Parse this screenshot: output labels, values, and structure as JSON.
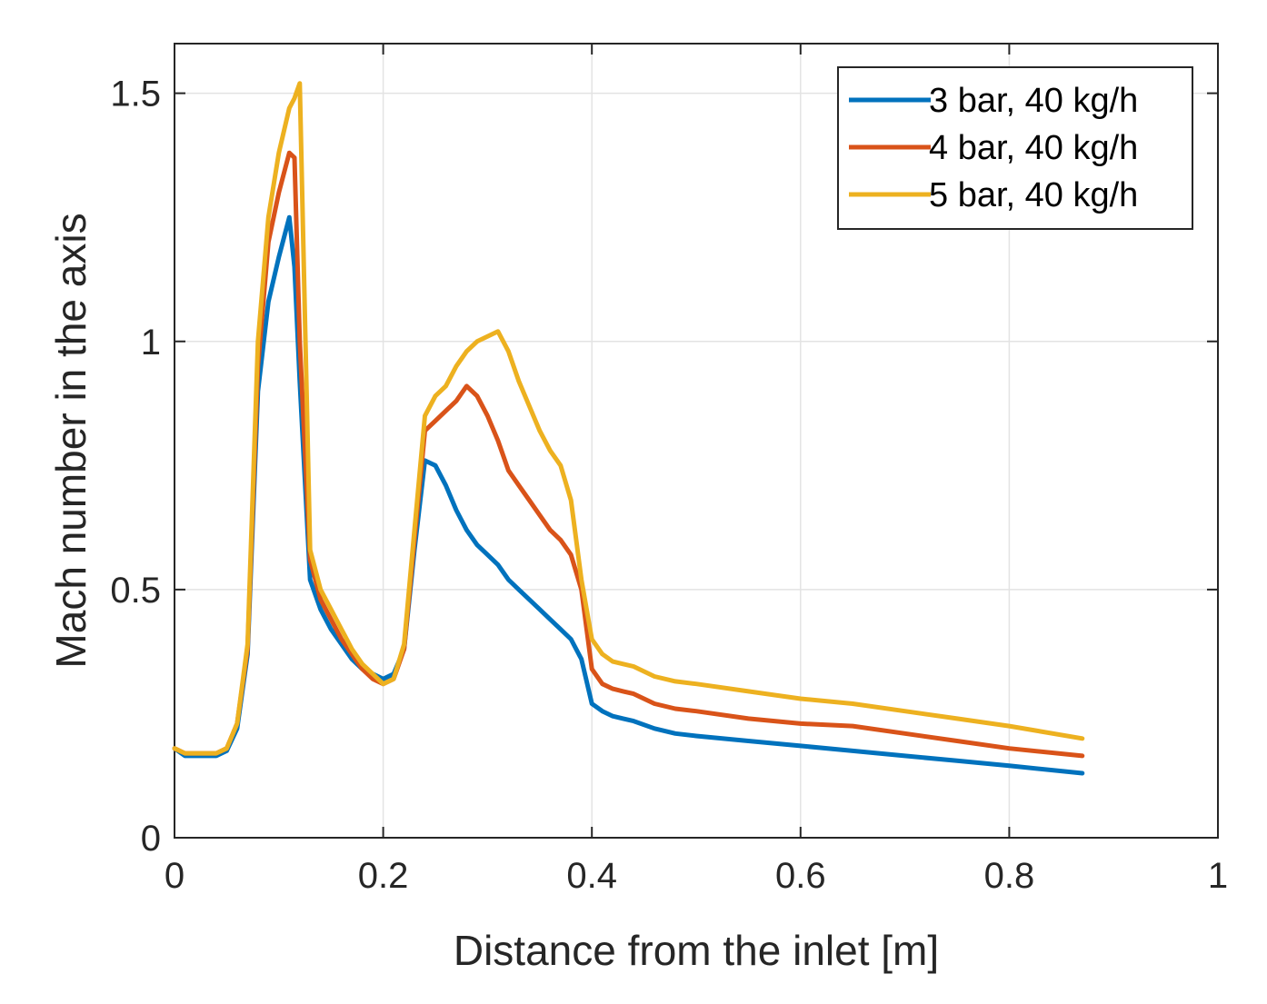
{
  "chart_data": {
    "type": "line",
    "title": "",
    "xlabel": "Distance from the inlet [m]",
    "ylabel": "Mach number in the axis",
    "xlim": [
      0,
      1
    ],
    "ylim": [
      0,
      1.6
    ],
    "xticks": [
      0,
      0.2,
      0.4,
      0.6,
      0.8,
      1
    ],
    "xtick_labels": [
      "0",
      "0.2",
      "0.4",
      "0.6",
      "0.8",
      "1"
    ],
    "yticks": [
      0,
      0.5,
      1,
      1.5
    ],
    "ytick_labels": [
      "0",
      "0.5",
      "1",
      "1.5"
    ],
    "grid": true,
    "legend_position": "top-right",
    "series": [
      {
        "name": "3 bar, 40 kg/h",
        "color": "#0072BD",
        "x": [
          0,
          0.01,
          0.02,
          0.03,
          0.04,
          0.05,
          0.06,
          0.07,
          0.08,
          0.09,
          0.1,
          0.11,
          0.115,
          0.12,
          0.13,
          0.14,
          0.15,
          0.16,
          0.17,
          0.18,
          0.19,
          0.2,
          0.21,
          0.22,
          0.23,
          0.24,
          0.25,
          0.26,
          0.27,
          0.28,
          0.29,
          0.3,
          0.31,
          0.32,
          0.33,
          0.34,
          0.35,
          0.36,
          0.37,
          0.38,
          0.39,
          0.4,
          0.41,
          0.42,
          0.43,
          0.44,
          0.46,
          0.48,
          0.5,
          0.55,
          0.6,
          0.65,
          0.7,
          0.75,
          0.8,
          0.87
        ],
        "y": [
          0.18,
          0.165,
          0.165,
          0.165,
          0.165,
          0.175,
          0.22,
          0.37,
          0.9,
          1.08,
          1.17,
          1.25,
          1.15,
          0.92,
          0.52,
          0.46,
          0.42,
          0.39,
          0.36,
          0.34,
          0.33,
          0.32,
          0.33,
          0.38,
          0.58,
          0.76,
          0.75,
          0.71,
          0.66,
          0.62,
          0.59,
          0.57,
          0.55,
          0.52,
          0.5,
          0.48,
          0.46,
          0.44,
          0.42,
          0.4,
          0.36,
          0.27,
          0.255,
          0.245,
          0.24,
          0.235,
          0.22,
          0.21,
          0.205,
          0.195,
          0.185,
          0.175,
          0.165,
          0.155,
          0.145,
          0.13
        ]
      },
      {
        "name": "4 bar, 40 kg/h",
        "color": "#D95319",
        "x": [
          0,
          0.01,
          0.02,
          0.03,
          0.04,
          0.05,
          0.06,
          0.07,
          0.08,
          0.09,
          0.1,
          0.11,
          0.115,
          0.12,
          0.13,
          0.14,
          0.15,
          0.16,
          0.17,
          0.18,
          0.19,
          0.2,
          0.21,
          0.22,
          0.23,
          0.24,
          0.25,
          0.26,
          0.27,
          0.28,
          0.29,
          0.3,
          0.31,
          0.32,
          0.33,
          0.34,
          0.35,
          0.36,
          0.37,
          0.38,
          0.39,
          0.4,
          0.41,
          0.42,
          0.43,
          0.44,
          0.46,
          0.48,
          0.5,
          0.55,
          0.6,
          0.65,
          0.7,
          0.75,
          0.8,
          0.87
        ],
        "y": [
          0.18,
          0.17,
          0.17,
          0.17,
          0.17,
          0.18,
          0.23,
          0.38,
          0.95,
          1.2,
          1.3,
          1.38,
          1.37,
          1.0,
          0.56,
          0.48,
          0.44,
          0.4,
          0.37,
          0.34,
          0.32,
          0.31,
          0.32,
          0.38,
          0.6,
          0.82,
          0.84,
          0.86,
          0.88,
          0.91,
          0.89,
          0.85,
          0.8,
          0.74,
          0.71,
          0.68,
          0.65,
          0.62,
          0.6,
          0.57,
          0.5,
          0.34,
          0.31,
          0.3,
          0.295,
          0.29,
          0.27,
          0.26,
          0.255,
          0.24,
          0.23,
          0.225,
          0.21,
          0.195,
          0.18,
          0.165
        ]
      },
      {
        "name": "5 bar, 40 kg/h",
        "color": "#EDB120",
        "x": [
          0,
          0.01,
          0.02,
          0.03,
          0.04,
          0.05,
          0.06,
          0.07,
          0.08,
          0.09,
          0.1,
          0.11,
          0.115,
          0.12,
          0.13,
          0.14,
          0.15,
          0.16,
          0.17,
          0.18,
          0.19,
          0.2,
          0.21,
          0.22,
          0.23,
          0.24,
          0.25,
          0.26,
          0.27,
          0.28,
          0.29,
          0.3,
          0.31,
          0.32,
          0.33,
          0.34,
          0.35,
          0.36,
          0.37,
          0.38,
          0.39,
          0.4,
          0.41,
          0.42,
          0.43,
          0.44,
          0.46,
          0.48,
          0.5,
          0.55,
          0.6,
          0.65,
          0.7,
          0.75,
          0.8,
          0.87
        ],
        "y": [
          0.18,
          0.17,
          0.17,
          0.17,
          0.17,
          0.18,
          0.23,
          0.39,
          1.0,
          1.25,
          1.38,
          1.47,
          1.49,
          1.52,
          0.58,
          0.5,
          0.46,
          0.42,
          0.38,
          0.35,
          0.33,
          0.31,
          0.32,
          0.39,
          0.62,
          0.85,
          0.89,
          0.91,
          0.95,
          0.98,
          1.0,
          1.01,
          1.02,
          0.98,
          0.92,
          0.87,
          0.82,
          0.78,
          0.75,
          0.68,
          0.52,
          0.4,
          0.37,
          0.355,
          0.35,
          0.345,
          0.325,
          0.315,
          0.31,
          0.295,
          0.28,
          0.27,
          0.255,
          0.24,
          0.225,
          0.2
        ]
      }
    ]
  }
}
